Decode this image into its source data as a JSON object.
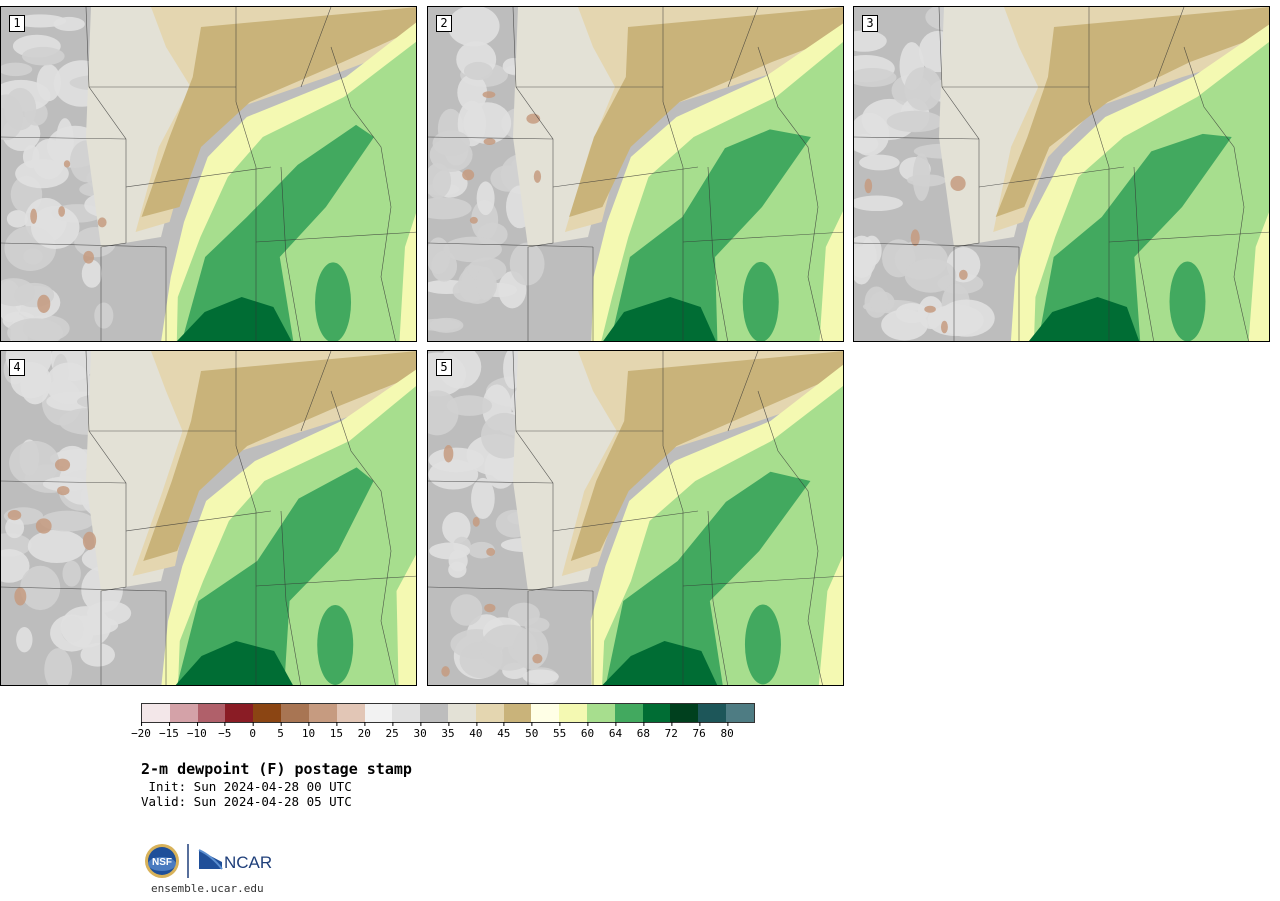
{
  "panels": [
    {
      "label": "1"
    },
    {
      "label": "2"
    },
    {
      "label": "3"
    },
    {
      "label": "4"
    },
    {
      "label": "5"
    }
  ],
  "colorbar": {
    "colors": [
      "#f3e7e9",
      "#d4a2a8",
      "#b0606a",
      "#8a1c25",
      "#8b4513",
      "#a87553",
      "#c69b80",
      "#e2c6b6",
      "#f2f2f2",
      "#e0e0e0",
      "#bdbdbd",
      "#e3e1d6",
      "#e4d6b0",
      "#c9b37a",
      "#ffffe6",
      "#f4f9b2",
      "#a7de8e",
      "#42a95f",
      "#006d34",
      "#00401e",
      "#1d5659",
      "#4e7c83"
    ],
    "ticks": [
      "−20",
      "−15",
      "−10",
      "−5",
      "0",
      "5",
      "10",
      "15",
      "20",
      "25",
      "30",
      "35",
      "40",
      "45",
      "50",
      "55",
      "60",
      "64",
      "68",
      "72",
      "76",
      "80"
    ]
  },
  "title": "2-m dewpoint (F) postage stamp",
  "init": " Init: Sun 2024-04-28 00 UTC",
  "valid": "Valid: Sun 2024-04-28 05 UTC",
  "footer": {
    "site": "ensemble.ucar.edu",
    "logo_ncar": "NCAR",
    "logo_nsf": "NSF"
  },
  "colors": {
    "dry_tan": "#c9b37a",
    "light_tan": "#e4d6b0",
    "pale_yellow": "#f4f9b2",
    "light_green": "#a7de8e",
    "mid_green": "#42a95f",
    "dark_green": "#006d34",
    "gray": "#bdbdbd",
    "light_gray": "#e0e0e0"
  }
}
